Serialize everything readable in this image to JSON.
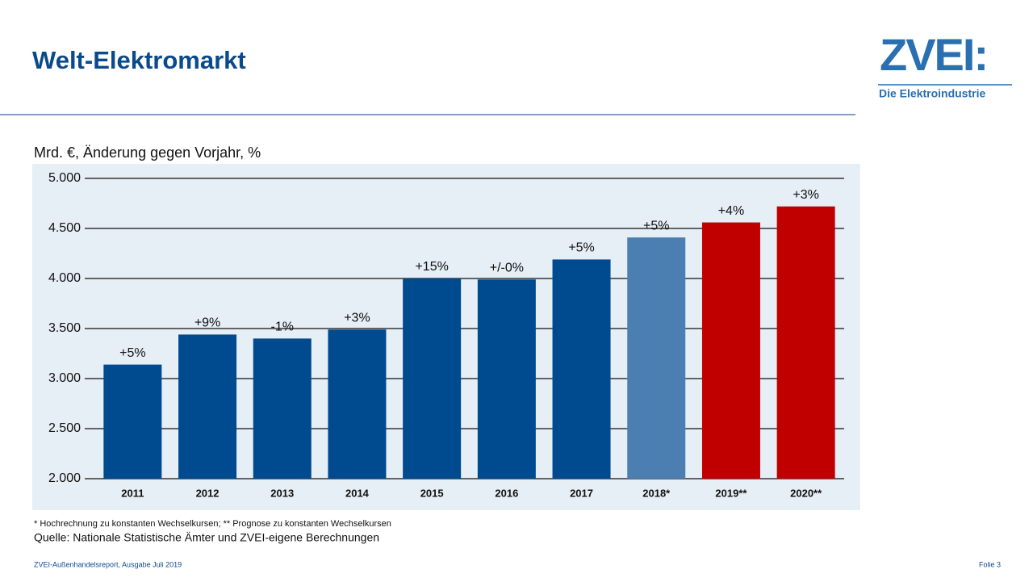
{
  "header": {
    "title": "Welt-Elektromarkt",
    "logo": "ZVEI:",
    "logo_subtitle": "Die Elektroindustrie"
  },
  "chart_data": {
    "type": "bar",
    "subtitle": "Mrd. €, Änderung gegen Vorjahr, %",
    "categories": [
      "2011",
      "2012",
      "2013",
      "2014",
      "2015",
      "2016",
      "2017",
      "2018*",
      "2019**",
      "2020**"
    ],
    "values": [
      3140,
      3440,
      3400,
      3490,
      4000,
      3990,
      4190,
      4410,
      4560,
      4720
    ],
    "changes": [
      "+5%",
      "+9%",
      "-1%",
      "+3%",
      "+15%",
      "+/-0%",
      "+5%",
      "+5%",
      "+4%",
      "+3%"
    ],
    "colors": [
      "#004a8f",
      "#004a8f",
      "#004a8f",
      "#004a8f",
      "#004a8f",
      "#004a8f",
      "#004a8f",
      "#4b7fb1",
      "#c00000",
      "#c00000"
    ],
    "ylim": [
      2000,
      5000
    ],
    "yticks": [
      {
        "value": 2000,
        "label": "2.000"
      },
      {
        "value": 2500,
        "label": "2.500"
      },
      {
        "value": 3000,
        "label": "3.000"
      },
      {
        "value": 3500,
        "label": "3.500"
      },
      {
        "value": 4000,
        "label": "4.000"
      },
      {
        "value": 4500,
        "label": "4.500"
      },
      {
        "value": 5000,
        "label": "5.000"
      }
    ],
    "grid": true,
    "footnote": "* Hochrechnung zu konstanten Wechselkursen; ** Prognose zu konstanten Wechselkursen",
    "source": "Quelle: Nationale Statistische Ämter und ZVEI-eigene Berechnungen"
  },
  "footer": {
    "left": "ZVEI-Außenhandelsreport, Ausgabe Juli 2019",
    "right": "Folie 3"
  }
}
